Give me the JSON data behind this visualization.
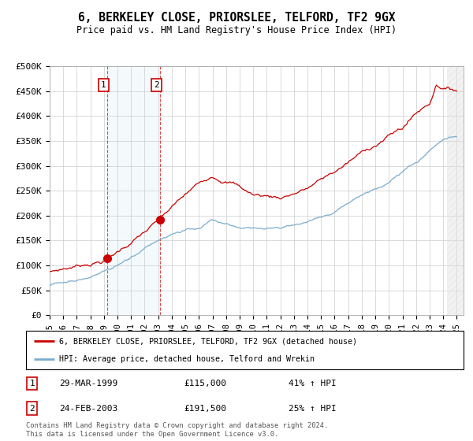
{
  "title": "6, BERKELEY CLOSE, PRIORSLEE, TELFORD, TF2 9GX",
  "subtitle": "Price paid vs. HM Land Registry's House Price Index (HPI)",
  "ylabel_ticks": [
    "£0",
    "£50K",
    "£100K",
    "£150K",
    "£200K",
    "£250K",
    "£300K",
    "£350K",
    "£400K",
    "£450K",
    "£500K"
  ],
  "ytick_vals": [
    0,
    50000,
    100000,
    150000,
    200000,
    250000,
    300000,
    350000,
    400000,
    450000,
    500000
  ],
  "xlim": [
    1995.0,
    2025.5
  ],
  "ylim": [
    0,
    500000
  ],
  "background_color": "#ffffff",
  "grid_color": "#cccccc",
  "red_line_color": "#cc0000",
  "blue_line_color": "#7aacce",
  "transaction1": {
    "date_label": "29-MAR-1999",
    "price": 115000,
    "pct": "41% ↑ HPI",
    "year": 1999.23
  },
  "transaction2": {
    "date_label": "24-FEB-2003",
    "price": 191500,
    "pct": "25% ↑ HPI",
    "year": 2003.12
  },
  "legend_label_red": "6, BERKELEY CLOSE, PRIORSLEE, TELFORD, TF2 9GX (detached house)",
  "legend_label_blue": "HPI: Average price, detached house, Telford and Wrekin",
  "footnote": "Contains HM Land Registry data © Crown copyright and database right 2024.\nThis data is licensed under the Open Government Licence v3.0.",
  "xtick_years": [
    1995,
    1996,
    1997,
    1998,
    1999,
    2000,
    2001,
    2002,
    2003,
    2004,
    2005,
    2006,
    2007,
    2008,
    2009,
    2010,
    2011,
    2012,
    2013,
    2014,
    2015,
    2016,
    2017,
    2018,
    2019,
    2020,
    2021,
    2022,
    2023,
    2024,
    2025
  ]
}
